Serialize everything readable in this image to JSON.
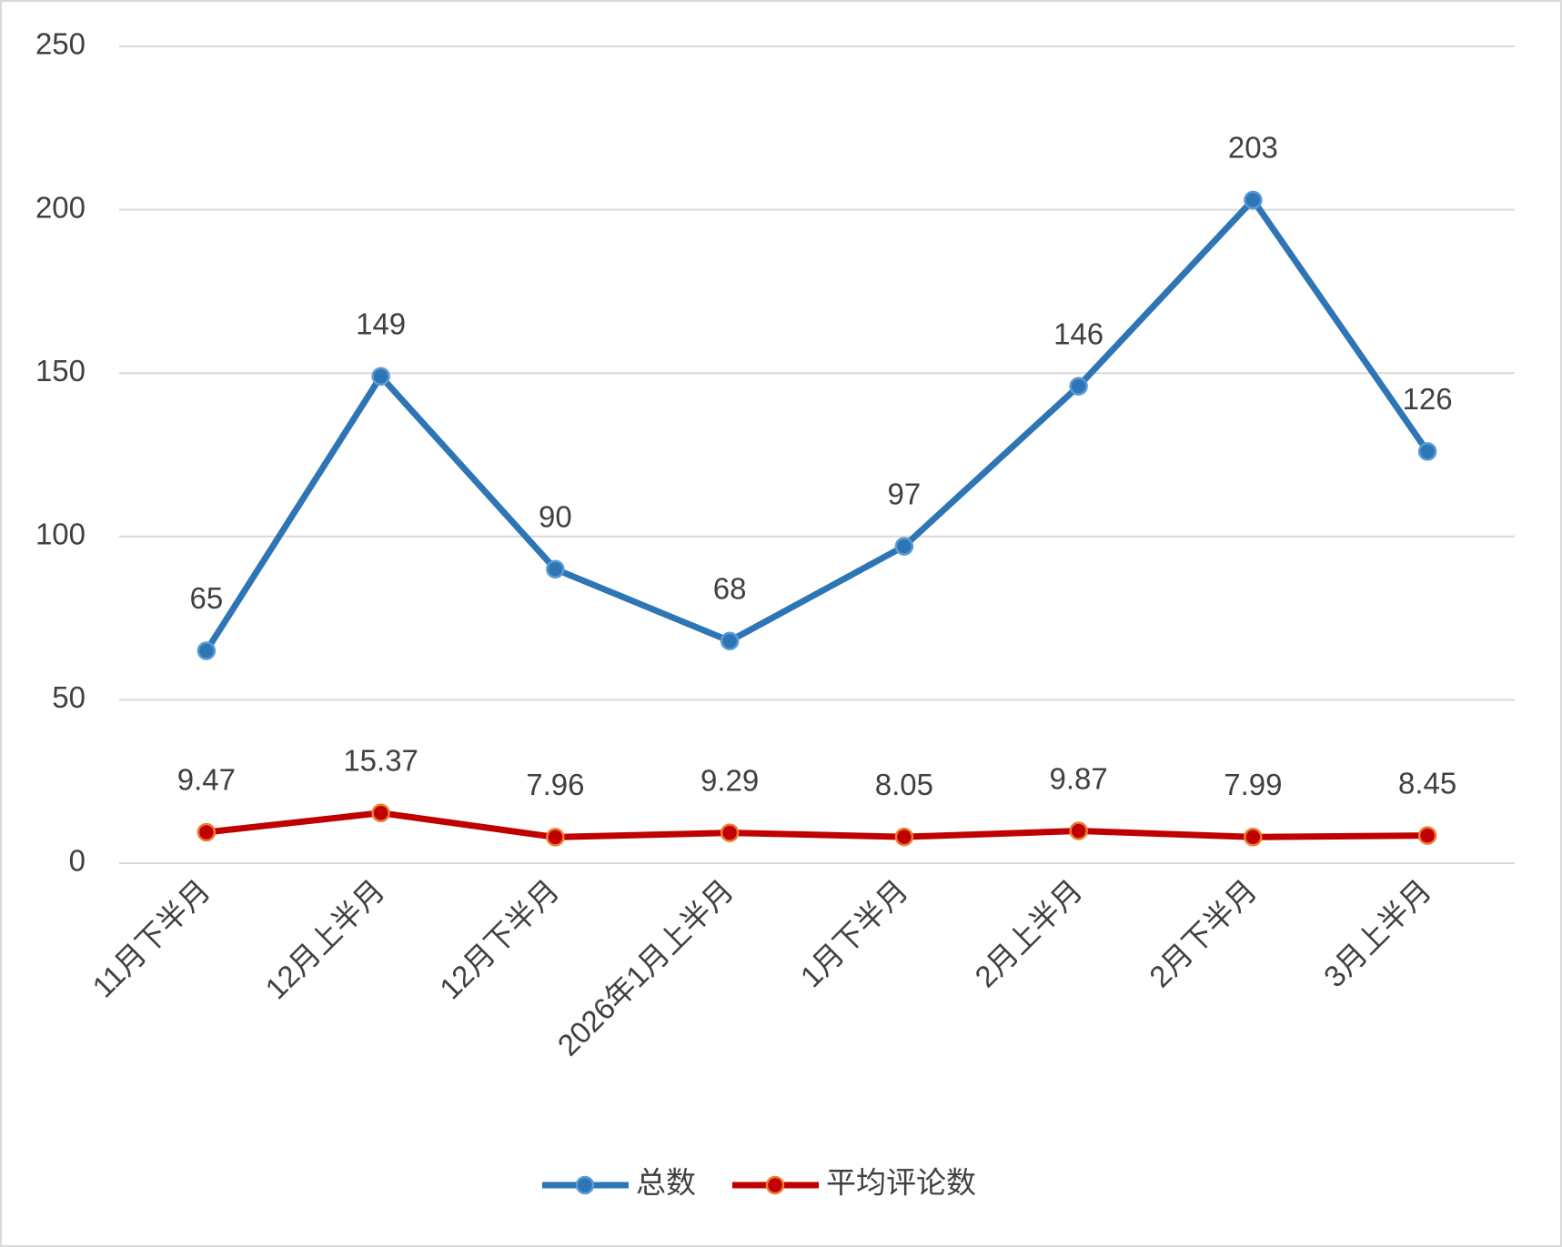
{
  "chart_data": {
    "type": "line",
    "categories": [
      "11月下半月",
      "12月上半月",
      "12月下半月",
      "2026年1月上半月",
      "1月下半月",
      "2月上半月",
      "2月下半月",
      "3月上半月"
    ],
    "series": [
      {
        "name": "总数",
        "color": "#2e75b6",
        "values": [
          65,
          149,
          90,
          68,
          97,
          146,
          203,
          126
        ]
      },
      {
        "name": "平均评论数",
        "color": "#c00000",
        "values": [
          9.47,
          15.37,
          7.96,
          9.29,
          8.05,
          9.87,
          7.99,
          8.45
        ]
      }
    ],
    "ylim": [
      0,
      250
    ],
    "yticks": [
      0,
      50,
      100,
      150,
      200,
      250
    ],
    "grid": true,
    "legend": "bottom"
  }
}
